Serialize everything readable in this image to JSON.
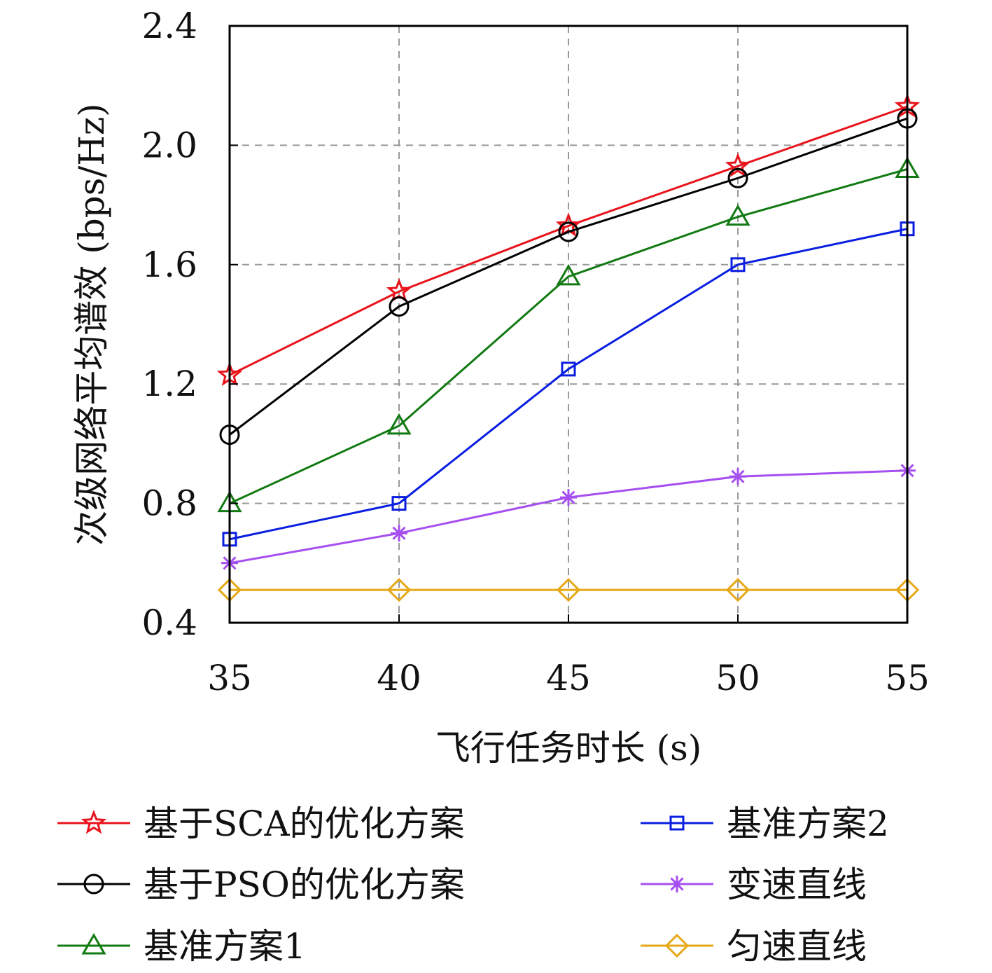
{
  "chart_data": {
    "type": "line",
    "xlabel": "飞行任务时长 (s)",
    "ylabel": "次级网络平均谱效 (bps/Hz)",
    "x": [
      35,
      40,
      45,
      50,
      55
    ],
    "xlim": [
      35,
      55
    ],
    "ylim": [
      0.4,
      2.4
    ],
    "xticks": [
      "35",
      "40",
      "45",
      "50",
      "55"
    ],
    "yticks": [
      "0.4",
      "0.8",
      "1.2",
      "1.6",
      "2.0",
      "2.4"
    ],
    "grid": true,
    "legend_position": "bottom",
    "series": [
      {
        "name": "基于SCA的优化方案",
        "color": "#e8141c",
        "marker": "star",
        "values": [
          1.23,
          1.51,
          1.73,
          1.93,
          2.13
        ]
      },
      {
        "name": "基于PSO的优化方案",
        "color": "#000000",
        "marker": "circle",
        "values": [
          1.03,
          1.46,
          1.71,
          1.89,
          2.09
        ]
      },
      {
        "name": "基准方案1",
        "color": "#127a12",
        "marker": "triangle",
        "values": [
          0.8,
          1.06,
          1.56,
          1.76,
          1.92
        ]
      },
      {
        "name": "基准方案2",
        "color": "#0a1ee0",
        "marker": "square",
        "values": [
          0.68,
          0.8,
          1.25,
          1.6,
          1.72
        ]
      },
      {
        "name": "变速直线",
        "color": "#a64ff0",
        "marker": "asterisk",
        "values": [
          0.6,
          0.7,
          0.82,
          0.89,
          0.91
        ]
      },
      {
        "name": "匀速直线",
        "color": "#e6a817",
        "marker": "diamond",
        "values": [
          0.51,
          0.51,
          0.51,
          0.51,
          0.51
        ]
      }
    ]
  }
}
